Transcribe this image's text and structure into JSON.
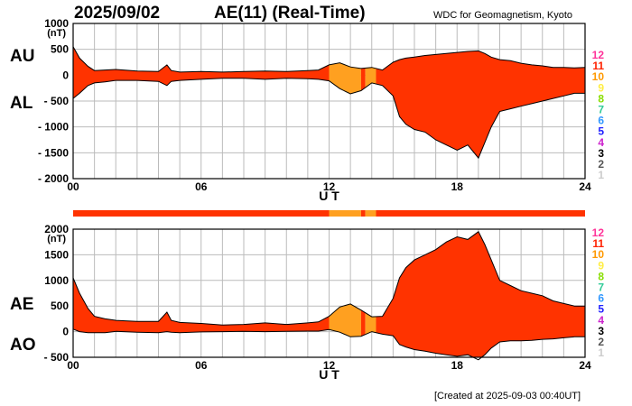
{
  "header": {
    "date": "2025/09/02",
    "index_title": "AE(11) (Real-Time)",
    "source": "WDC for Geomagnetism, Kyoto"
  },
  "footer": {
    "created": "[Created at 2025-09-03 00:40UT]"
  },
  "level_legend": {
    "labels": [
      "12",
      "11",
      "10",
      "9",
      "8",
      "7",
      "6",
      "5",
      "4",
      "3",
      "2",
      "1"
    ],
    "colors": [
      "#ff3399",
      "#ff2200",
      "#ff9900",
      "#ffee44",
      "#88dd00",
      "#33cc99",
      "#3399ff",
      "#2222ff",
      "#cc22cc",
      "#000000",
      "#555555",
      "#cccccc"
    ]
  },
  "colors": {
    "level11": "#ff3300",
    "level10": "#ffa020",
    "outline": "#000000"
  },
  "chart_data": [
    {
      "type": "area",
      "panel": "AU/AL",
      "side_labels": [
        "AU",
        "AL"
      ],
      "unit": "(nT)",
      "xlabel": "U T",
      "xlim": [
        0,
        24
      ],
      "x_ticks": [
        "00",
        "06",
        "12",
        "18",
        "24"
      ],
      "ylim": [
        -2000,
        1000
      ],
      "y_ticks": [
        "1000",
        "500",
        "0",
        "- 500",
        "- 1000",
        "- 1500",
        "- 2000"
      ],
      "grid": true,
      "x": [
        0,
        0.3,
        0.7,
        1.0,
        1.5,
        2,
        3,
        4,
        4.4,
        4.6,
        5,
        6,
        7,
        8,
        9,
        10,
        11,
        11.5,
        12,
        12.5,
        13,
        13.5,
        14,
        14.5,
        15,
        15.3,
        15.6,
        16,
        16.5,
        17,
        17.5,
        18,
        18.5,
        19,
        19.3,
        19.6,
        20,
        20.5,
        21,
        21.5,
        22,
        22.5,
        23,
        23.5,
        24
      ],
      "series": [
        {
          "name": "AU",
          "values": [
            550,
            330,
            170,
            90,
            100,
            110,
            80,
            70,
            200,
            90,
            60,
            70,
            60,
            70,
            80,
            70,
            90,
            100,
            200,
            240,
            160,
            130,
            150,
            100,
            250,
            300,
            330,
            350,
            380,
            400,
            420,
            440,
            460,
            470,
            420,
            350,
            300,
            280,
            230,
            200,
            180,
            150,
            150,
            140,
            150
          ]
        },
        {
          "name": "AL",
          "values": [
            -450,
            -350,
            -200,
            -150,
            -130,
            -100,
            -100,
            -120,
            -200,
            -120,
            -100,
            -80,
            -60,
            -60,
            -80,
            -60,
            -70,
            -80,
            -110,
            -260,
            -360,
            -300,
            -150,
            -200,
            -400,
            -800,
            -950,
            -1050,
            -1100,
            -1250,
            -1350,
            -1450,
            -1350,
            -1600,
            -1300,
            -1000,
            -700,
            -650,
            -600,
            -550,
            -500,
            -450,
            -400,
            -350,
            -350
          ]
        }
      ],
      "level_by_hour": [
        {
          "from": 0,
          "to": 12,
          "level": 11
        },
        {
          "from": 12,
          "to": 13.5,
          "level": 10
        },
        {
          "from": 13.5,
          "to": 13.7,
          "level": 11
        },
        {
          "from": 13.7,
          "to": 14.2,
          "level": 10
        },
        {
          "from": 14.2,
          "to": 24,
          "level": 11
        }
      ]
    },
    {
      "type": "area",
      "panel": "AE/AO",
      "side_labels": [
        "AE",
        "AO"
      ],
      "unit": "(nT)",
      "xlabel": "U T",
      "xlim": [
        0,
        24
      ],
      "x_ticks": [
        "00",
        "06",
        "12",
        "18",
        "24"
      ],
      "ylim": [
        -500,
        2000
      ],
      "y_ticks": [
        "2000",
        "1500",
        "1000",
        "500",
        "0",
        "- 500"
      ],
      "grid": true,
      "x": [
        0,
        0.3,
        0.7,
        1.0,
        1.5,
        2,
        3,
        4,
        4.4,
        4.6,
        5,
        6,
        7,
        8,
        9,
        10,
        11,
        11.5,
        12,
        12.5,
        13,
        13.5,
        14,
        14.5,
        15,
        15.3,
        15.6,
        16,
        16.5,
        17,
        17.5,
        18,
        18.5,
        19,
        19.3,
        19.6,
        20,
        20.5,
        21,
        21.5,
        22,
        22.5,
        23,
        23.5,
        24
      ],
      "series": [
        {
          "name": "AE",
          "values": [
            1050,
            750,
            450,
            300,
            250,
            220,
            200,
            200,
            380,
            220,
            180,
            160,
            130,
            140,
            170,
            140,
            170,
            190,
            300,
            480,
            540,
            420,
            290,
            300,
            650,
            1050,
            1250,
            1400,
            1500,
            1600,
            1750,
            1850,
            1800,
            1950,
            1700,
            1400,
            1000,
            900,
            800,
            750,
            700,
            600,
            550,
            500,
            500
          ]
        },
        {
          "name": "AO",
          "values": [
            50,
            0,
            -20,
            -20,
            -20,
            5,
            -10,
            -20,
            0,
            -10,
            -20,
            -5,
            0,
            5,
            0,
            5,
            10,
            10,
            40,
            -10,
            -100,
            -90,
            0,
            -50,
            -80,
            -250,
            -300,
            -350,
            -380,
            -420,
            -450,
            -480,
            -450,
            -550,
            -450,
            -320,
            -200,
            -180,
            -180,
            -170,
            -150,
            -140,
            -120,
            -100,
            -100
          ]
        }
      ],
      "level_by_hour": [
        {
          "from": 0,
          "to": 12,
          "level": 11
        },
        {
          "from": 12,
          "to": 13.5,
          "level": 10
        },
        {
          "from": 13.5,
          "to": 13.7,
          "level": 11
        },
        {
          "from": 13.7,
          "to": 14.2,
          "level": 10
        },
        {
          "from": 14.2,
          "to": 24,
          "level": 11
        }
      ]
    }
  ]
}
